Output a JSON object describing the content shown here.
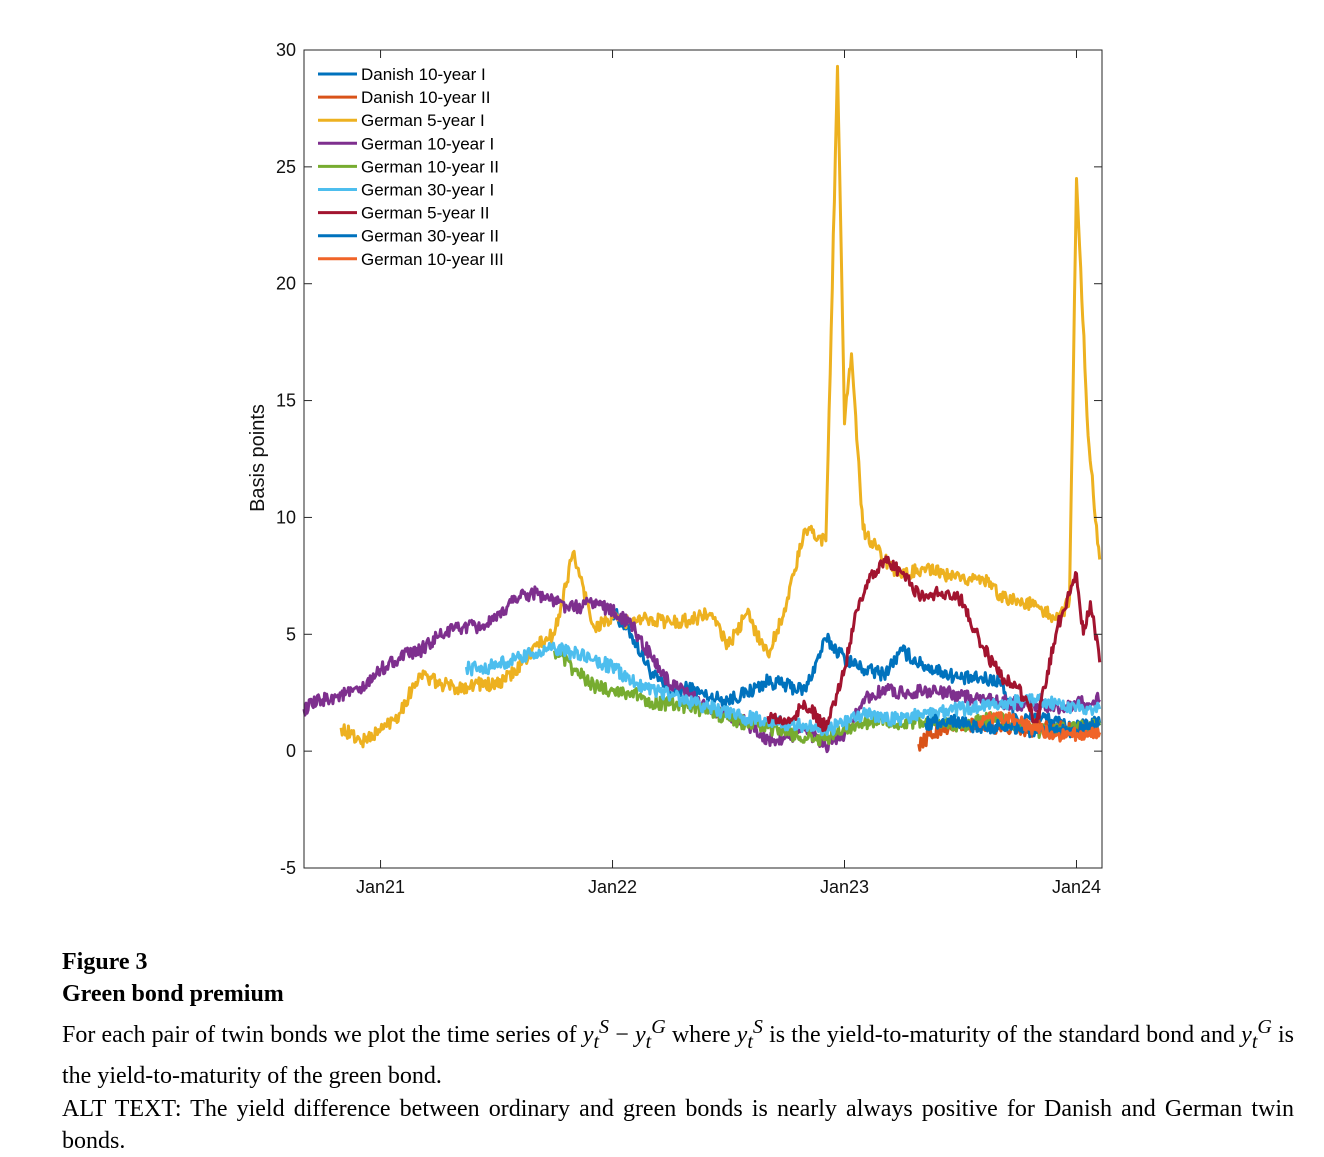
{
  "chart_data": {
    "type": "line",
    "title": "",
    "xlabel": "",
    "ylabel": "Basis points",
    "ylim": [
      -5,
      30
    ],
    "yticks": [
      -5,
      0,
      5,
      10,
      15,
      20,
      25,
      30
    ],
    "xlim": [
      2020.67,
      2024.11
    ],
    "xticks": [
      {
        "label": "Jan21",
        "value": 2021.0
      },
      {
        "label": "Jan22",
        "value": 2022.0
      },
      {
        "label": "Jan23",
        "value": 2023.0
      },
      {
        "label": "Jan24",
        "value": 2024.0
      }
    ],
    "grid": false,
    "legend_position": "top-left",
    "series": [
      {
        "name": "Danish 10-year I",
        "color": "#0072BD",
        "x": [
          2022.0,
          2022.08,
          2022.17,
          2022.25,
          2022.33,
          2022.42,
          2022.5,
          2022.58,
          2022.67,
          2022.75,
          2022.83,
          2022.92,
          2023.0,
          2023.08,
          2023.17,
          2023.25,
          2023.33,
          2023.42,
          2023.5,
          2023.58,
          2023.67,
          2023.75,
          2023.83,
          2023.92,
          2024.0,
          2024.1
        ],
        "y": [
          6.0,
          5.0,
          3.3,
          2.5,
          2.7,
          2.3,
          2.2,
          2.5,
          3.0,
          2.8,
          2.6,
          4.8,
          4.0,
          3.5,
          3.3,
          4.3,
          3.7,
          3.4,
          3.1,
          3.1,
          3.0,
          1.3,
          1.5,
          1.2,
          1.0,
          1.2
        ]
      },
      {
        "name": "Danish 10-year II",
        "color": "#D95319",
        "x": [
          2023.32,
          2023.42,
          2023.5,
          2023.58,
          2023.67,
          2023.75,
          2023.8,
          2023.83,
          2023.92,
          2024.0,
          2024.1
        ],
        "y": [
          0.3,
          1.0,
          1.1,
          1.1,
          1.0,
          1.0,
          0.8,
          1.2,
          1.0,
          0.9,
          0.8
        ]
      },
      {
        "name": "German 5-year I",
        "color": "#EDB120",
        "x": [
          2020.83,
          2020.92,
          2021.0,
          2021.08,
          2021.17,
          2021.25,
          2021.33,
          2021.42,
          2021.5,
          2021.58,
          2021.67,
          2021.75,
          2021.83,
          2021.92,
          2022.0,
          2022.08,
          2022.17,
          2022.25,
          2022.33,
          2022.42,
          2022.5,
          2022.58,
          2022.67,
          2022.75,
          2022.83,
          2022.92,
          2022.97,
          2023.0,
          2023.03,
          2023.08,
          2023.17,
          2023.25,
          2023.33,
          2023.42,
          2023.5,
          2023.58,
          2023.67,
          2023.75,
          2023.83,
          2023.92,
          2023.97,
          2024.0,
          2024.05,
          2024.1
        ],
        "y": [
          1.0,
          0.4,
          0.9,
          1.6,
          3.3,
          2.9,
          2.7,
          2.9,
          2.8,
          3.4,
          4.5,
          5.0,
          8.5,
          5.3,
          5.7,
          5.5,
          5.7,
          5.5,
          5.6,
          5.9,
          4.5,
          5.9,
          4.1,
          6.3,
          9.5,
          9.0,
          29.3,
          14.0,
          17.0,
          9.5,
          8.2,
          7.5,
          7.8,
          7.6,
          7.3,
          7.5,
          6.7,
          6.4,
          6.2,
          5.6,
          6.5,
          24.5,
          13.5,
          8.2
        ]
      },
      {
        "name": "German 10-year I",
        "color": "#7E2F8E",
        "x": [
          2020.67,
          2020.75,
          2020.83,
          2020.92,
          2021.0,
          2021.08,
          2021.17,
          2021.25,
          2021.33,
          2021.42,
          2021.5,
          2021.58,
          2021.67,
          2021.75,
          2021.83,
          2021.92,
          2022.0,
          2022.08,
          2022.17,
          2022.25,
          2022.33,
          2022.42,
          2022.5,
          2022.58,
          2022.67,
          2022.75,
          2022.83,
          2022.92,
          2023.0,
          2023.08,
          2023.17,
          2023.25,
          2023.33,
          2023.42,
          2023.5,
          2023.58,
          2023.67,
          2023.75,
          2023.83,
          2023.92,
          2024.0,
          2024.1
        ],
        "y": [
          1.8,
          2.2,
          2.4,
          2.6,
          3.5,
          4.0,
          4.3,
          4.9,
          5.3,
          5.3,
          5.6,
          6.6,
          6.8,
          6.4,
          6.1,
          6.4,
          6.0,
          5.4,
          4.0,
          2.8,
          2.4,
          1.8,
          1.5,
          1.2,
          0.5,
          0.6,
          0.9,
          0.2,
          0.7,
          2.2,
          2.6,
          2.5,
          2.6,
          2.5,
          2.4,
          2.2,
          2.1,
          2.0,
          2.0,
          1.9,
          2.0,
          2.2
        ]
      },
      {
        "name": "German 10-year II",
        "color": "#77AC30",
        "x": [
          2021.75,
          2021.83,
          2021.92,
          2022.0,
          2022.08,
          2022.17,
          2022.25,
          2022.33,
          2022.42,
          2022.5,
          2022.58,
          2022.67,
          2022.75,
          2022.83,
          2022.92,
          2023.0,
          2023.08,
          2023.17,
          2023.25,
          2023.33,
          2023.42,
          2023.5,
          2023.58,
          2023.67,
          2023.75,
          2023.83,
          2023.92,
          2024.0,
          2024.1
        ],
        "y": [
          4.3,
          3.5,
          2.8,
          2.6,
          2.5,
          2.1,
          2.0,
          1.9,
          1.7,
          1.4,
          1.2,
          1.0,
          0.8,
          0.6,
          0.5,
          1.0,
          1.2,
          1.4,
          1.1,
          1.3,
          1.2,
          1.0,
          1.3,
          1.4,
          1.0,
          0.8,
          0.9,
          1.0,
          1.1
        ]
      },
      {
        "name": "German 30-year I",
        "color": "#4DBEEE",
        "x": [
          2021.37,
          2021.42,
          2021.5,
          2021.58,
          2021.67,
          2021.75,
          2021.83,
          2021.92,
          2022.0,
          2022.08,
          2022.17,
          2022.25,
          2022.33,
          2022.42,
          2022.5,
          2022.58,
          2022.67,
          2022.75,
          2022.83,
          2022.92,
          2023.0,
          2023.08,
          2023.17,
          2023.25,
          2023.33,
          2023.42,
          2023.5,
          2023.58,
          2023.67,
          2023.75,
          2023.83,
          2023.92,
          2024.0,
          2024.1
        ],
        "y": [
          3.6,
          3.5,
          3.7,
          3.9,
          4.2,
          4.4,
          4.2,
          3.9,
          3.6,
          3.0,
          2.7,
          2.4,
          2.1,
          1.9,
          1.6,
          1.4,
          1.4,
          1.1,
          1.1,
          0.9,
          1.2,
          1.6,
          1.4,
          1.4,
          1.6,
          1.7,
          1.8,
          1.9,
          2.0,
          2.1,
          2.2,
          2.0,
          1.9,
          1.8
        ]
      },
      {
        "name": "German 5-year II",
        "color": "#A2142F",
        "x": [
          2022.67,
          2022.75,
          2022.83,
          2022.92,
          2022.97,
          2023.0,
          2023.05,
          2023.1,
          2023.17,
          2023.25,
          2023.33,
          2023.42,
          2023.5,
          2023.58,
          2023.67,
          2023.75,
          2023.83,
          2023.92,
          2024.0,
          2024.03,
          2024.06,
          2024.1
        ],
        "y": [
          1.5,
          1.2,
          2.0,
          1.0,
          2.5,
          3.5,
          6.0,
          7.3,
          8.2,
          7.6,
          6.6,
          6.8,
          6.5,
          4.8,
          3.2,
          2.7,
          1.2,
          5.4,
          7.6,
          5.0,
          6.4,
          3.8
        ]
      },
      {
        "name": "German 30-year II",
        "color": "#0072BD",
        "x": [
          2023.35,
          2023.42,
          2023.5,
          2023.58,
          2023.67,
          2023.75,
          2023.83,
          2023.92,
          2024.0,
          2024.1
        ],
        "y": [
          1.2,
          1.3,
          1.3,
          1.0,
          1.1,
          1.0,
          0.8,
          0.8,
          0.9,
          1.1
        ]
      },
      {
        "name": "German 10-year III",
        "color": "#F06428",
        "x": [
          2023.58,
          2023.67,
          2023.75,
          2023.83,
          2023.92,
          2024.0,
          2024.1
        ],
        "y": [
          1.3,
          1.4,
          1.3,
          0.9,
          0.7,
          0.7,
          0.8
        ]
      }
    ]
  },
  "caption": {
    "figure_number": "Figure 3",
    "figure_title": "Green bond premium",
    "text_part1": "For each pair of twin bonds we plot the time series of ",
    "text_part2": " where ",
    "text_part3": " is the yield-to-maturity of the standard bond and ",
    "text_part4": " is the yield-to-maturity of the green bond.",
    "math_y": "y",
    "math_t": "t",
    "math_S": "S",
    "math_G": "G",
    "math_minus": "−",
    "alt_text": "ALT TEXT: The yield difference between ordinary and green bonds is nearly always positive for Danish and German twin bonds."
  }
}
